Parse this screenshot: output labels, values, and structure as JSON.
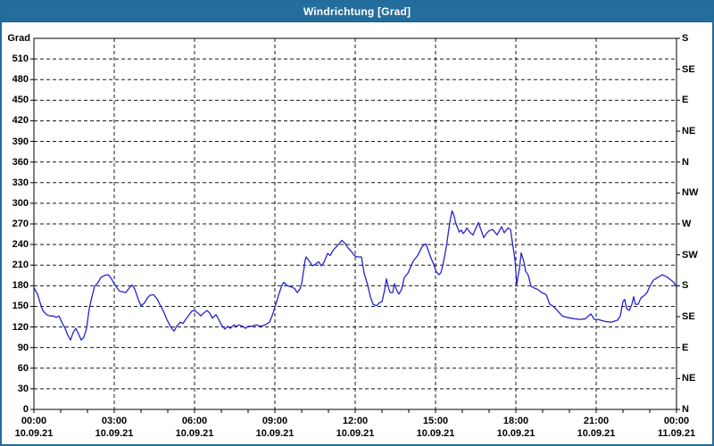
{
  "window": {
    "title": "Windrichtung [Grad]"
  },
  "colors": {
    "titlebar": "#246e9e",
    "window_border": "#226b9c",
    "line": "#2525c8",
    "grid": "#1a1a1a",
    "axis": "#000000",
    "plot_bg": "#ffffff",
    "title_text": "#ffffff"
  },
  "chart_data": {
    "type": "line",
    "title": "Windrichtung [Grad]",
    "ylabel": "Grad",
    "ylim": [
      0,
      540
    ],
    "x_minutes_span": 1440,
    "grid": "dashed, 30 deg horizontal / 3 h vertical",
    "legend": "none",
    "y_left_ticks": [
      510,
      480,
      450,
      420,
      390,
      360,
      330,
      300,
      270,
      240,
      210,
      180,
      150,
      120,
      90,
      60,
      30,
      0
    ],
    "y_right_labels": [
      {
        "deg": 540,
        "label": "S"
      },
      {
        "deg": 495,
        "label": "SE"
      },
      {
        "deg": 450,
        "label": "E"
      },
      {
        "deg": 405,
        "label": "NE"
      },
      {
        "deg": 360,
        "label": "N"
      },
      {
        "deg": 315,
        "label": "NW"
      },
      {
        "deg": 270,
        "label": "W"
      },
      {
        "deg": 225,
        "label": "SW"
      },
      {
        "deg": 180,
        "label": "S"
      },
      {
        "deg": 135,
        "label": "SE"
      },
      {
        "deg": 90,
        "label": "E"
      },
      {
        "deg": 45,
        "label": "NE"
      },
      {
        "deg": 0,
        "label": "N"
      }
    ],
    "x_ticks": [
      {
        "hour": 0,
        "time": "00:00",
        "date": "10.09.21"
      },
      {
        "hour": 3,
        "time": "03:00",
        "date": "10.09.21"
      },
      {
        "hour": 6,
        "time": "06:00",
        "date": "10.09.21"
      },
      {
        "hour": 9,
        "time": "09:00",
        "date": "10.09.21"
      },
      {
        "hour": 12,
        "time": "12:00",
        "date": "10.09.21"
      },
      {
        "hour": 15,
        "time": "15:00",
        "date": "10.09.21"
      },
      {
        "hour": 18,
        "time": "18:00",
        "date": "10.09.21"
      },
      {
        "hour": 21,
        "time": "21:00",
        "date": "10.09.21"
      },
      {
        "hour": 24,
        "time": "00:00",
        "date": "11.09.21"
      }
    ],
    "series_name": "Windrichtung",
    "points_time_min_deg": [
      [
        0,
        177
      ],
      [
        8,
        168
      ],
      [
        14,
        155
      ],
      [
        20,
        144
      ],
      [
        28,
        138
      ],
      [
        36,
        136
      ],
      [
        44,
        136
      ],
      [
        50,
        134
      ],
      [
        56,
        136
      ],
      [
        64,
        125
      ],
      [
        70,
        118
      ],
      [
        76,
        108
      ],
      [
        82,
        101
      ],
      [
        88,
        112
      ],
      [
        94,
        118
      ],
      [
        100,
        110
      ],
      [
        106,
        101
      ],
      [
        112,
        105
      ],
      [
        118,
        118
      ],
      [
        124,
        147
      ],
      [
        130,
        164
      ],
      [
        136,
        179
      ],
      [
        144,
        185
      ],
      [
        150,
        192
      ],
      [
        158,
        195
      ],
      [
        166,
        196
      ],
      [
        172,
        192
      ],
      [
        180,
        183
      ],
      [
        186,
        177
      ],
      [
        192,
        172
      ],
      [
        200,
        171
      ],
      [
        206,
        170
      ],
      [
        214,
        177
      ],
      [
        220,
        181
      ],
      [
        226,
        175
      ],
      [
        234,
        160
      ],
      [
        240,
        151
      ],
      [
        248,
        155
      ],
      [
        254,
        162
      ],
      [
        260,
        166
      ],
      [
        268,
        167
      ],
      [
        276,
        161
      ],
      [
        282,
        153
      ],
      [
        290,
        143
      ],
      [
        298,
        131
      ],
      [
        304,
        123
      ],
      [
        310,
        117
      ],
      [
        314,
        114
      ],
      [
        320,
        121
      ],
      [
        328,
        127
      ],
      [
        334,
        125
      ],
      [
        340,
        131
      ],
      [
        348,
        138
      ],
      [
        354,
        143
      ],
      [
        360,
        144
      ],
      [
        368,
        140
      ],
      [
        374,
        136
      ],
      [
        380,
        140
      ],
      [
        388,
        144
      ],
      [
        394,
        140
      ],
      [
        400,
        133
      ],
      [
        408,
        138
      ],
      [
        414,
        131
      ],
      [
        420,
        123
      ],
      [
        428,
        117
      ],
      [
        434,
        121
      ],
      [
        440,
        118
      ],
      [
        448,
        123
      ],
      [
        454,
        121
      ],
      [
        460,
        123
      ],
      [
        468,
        121
      ],
      [
        474,
        118
      ],
      [
        480,
        121
      ],
      [
        488,
        121
      ],
      [
        498,
        123
      ],
      [
        508,
        121
      ],
      [
        518,
        123
      ],
      [
        528,
        127
      ],
      [
        536,
        140
      ],
      [
        540,
        149
      ],
      [
        544,
        157
      ],
      [
        550,
        170
      ],
      [
        556,
        181
      ],
      [
        560,
        185
      ],
      [
        566,
        181
      ],
      [
        572,
        179
      ],
      [
        578,
        178
      ],
      [
        584,
        176
      ],
      [
        590,
        170
      ],
      [
        596,
        175
      ],
      [
        600,
        183
      ],
      [
        604,
        200
      ],
      [
        608,
        218
      ],
      [
        610,
        222
      ],
      [
        618,
        215
      ],
      [
        624,
        209
      ],
      [
        630,
        211
      ],
      [
        638,
        215
      ],
      [
        644,
        209
      ],
      [
        650,
        214
      ],
      [
        658,
        227
      ],
      [
        664,
        224
      ],
      [
        670,
        231
      ],
      [
        678,
        237
      ],
      [
        684,
        241
      ],
      [
        690,
        246
      ],
      [
        698,
        241
      ],
      [
        704,
        235
      ],
      [
        710,
        231
      ],
      [
        718,
        224
      ],
      [
        724,
        222
      ],
      [
        734,
        222
      ],
      [
        740,
        198
      ],
      [
        748,
        181
      ],
      [
        754,
        164
      ],
      [
        760,
        153
      ],
      [
        768,
        151
      ],
      [
        774,
        155
      ],
      [
        780,
        157
      ],
      [
        786,
        174
      ],
      [
        790,
        190
      ],
      [
        794,
        179
      ],
      [
        798,
        170
      ],
      [
        804,
        170
      ],
      [
        808,
        183
      ],
      [
        814,
        172
      ],
      [
        818,
        168
      ],
      [
        824,
        175
      ],
      [
        830,
        192
      ],
      [
        838,
        198
      ],
      [
        844,
        207
      ],
      [
        850,
        216
      ],
      [
        860,
        224
      ],
      [
        870,
        237
      ],
      [
        878,
        241
      ],
      [
        884,
        231
      ],
      [
        890,
        220
      ],
      [
        896,
        211
      ],
      [
        902,
        200
      ],
      [
        908,
        196
      ],
      [
        912,
        199
      ],
      [
        916,
        209
      ],
      [
        920,
        222
      ],
      [
        925,
        240
      ],
      [
        929,
        259
      ],
      [
        933,
        276
      ],
      [
        937,
        289
      ],
      [
        941,
        283
      ],
      [
        945,
        272
      ],
      [
        949,
        265
      ],
      [
        953,
        258
      ],
      [
        958,
        261
      ],
      [
        962,
        256
      ],
      [
        966,
        259
      ],
      [
        970,
        264
      ],
      [
        978,
        257
      ],
      [
        984,
        254
      ],
      [
        990,
        263
      ],
      [
        996,
        272
      ],
      [
        1002,
        261
      ],
      [
        1008,
        250
      ],
      [
        1014,
        256
      ],
      [
        1020,
        260
      ],
      [
        1028,
        262
      ],
      [
        1038,
        254
      ],
      [
        1048,
        266
      ],
      [
        1054,
        257
      ],
      [
        1062,
        264
      ],
      [
        1068,
        262
      ],
      [
        1072,
        244
      ],
      [
        1078,
        218
      ],
      [
        1082,
        182
      ],
      [
        1086,
        198
      ],
      [
        1088,
        205
      ],
      [
        1092,
        228
      ],
      [
        1098,
        215
      ],
      [
        1102,
        201
      ],
      [
        1108,
        195
      ],
      [
        1114,
        179
      ],
      [
        1120,
        177
      ],
      [
        1128,
        175
      ],
      [
        1138,
        170
      ],
      [
        1148,
        167
      ],
      [
        1156,
        153
      ],
      [
        1164,
        150
      ],
      [
        1174,
        143
      ],
      [
        1184,
        136
      ],
      [
        1194,
        134
      ],
      [
        1210,
        132
      ],
      [
        1224,
        131
      ],
      [
        1236,
        132
      ],
      [
        1248,
        139
      ],
      [
        1256,
        131
      ],
      [
        1264,
        131
      ],
      [
        1280,
        128
      ],
      [
        1294,
        127
      ],
      [
        1308,
        130
      ],
      [
        1314,
        136
      ],
      [
        1320,
        157
      ],
      [
        1324,
        160
      ],
      [
        1328,
        147
      ],
      [
        1334,
        144
      ],
      [
        1340,
        153
      ],
      [
        1344,
        164
      ],
      [
        1348,
        153
      ],
      [
        1354,
        153
      ],
      [
        1360,
        162
      ],
      [
        1368,
        166
      ],
      [
        1374,
        170
      ],
      [
        1380,
        179
      ],
      [
        1388,
        188
      ],
      [
        1398,
        192
      ],
      [
        1408,
        196
      ],
      [
        1418,
        193
      ],
      [
        1426,
        189
      ],
      [
        1434,
        185
      ],
      [
        1440,
        178
      ]
    ]
  }
}
